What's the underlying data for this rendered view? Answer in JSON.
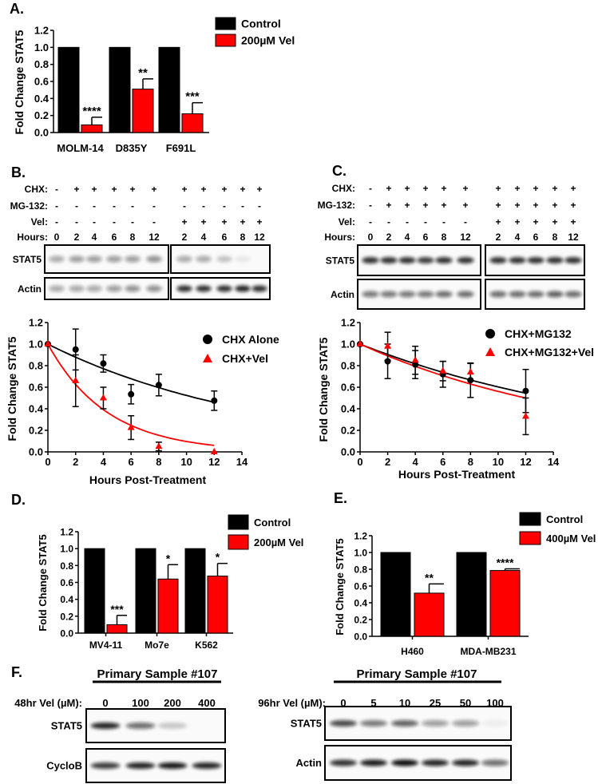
{
  "colors": {
    "control": "#000000",
    "vel": "#ff0000"
  },
  "chart_data": [
    {
      "id": "A",
      "panel_label": "A.",
      "type": "bar",
      "ylabel": "Fold Change STAT5",
      "xlabel": "",
      "ylim": [
        0,
        1.2
      ],
      "yticks": [
        "0.0",
        "0.2",
        "0.4",
        "0.6",
        "0.8",
        "1.0",
        "1.2"
      ],
      "categories": [
        "MOLM-14",
        "D835Y",
        "F691L"
      ],
      "series": [
        {
          "name": "Control",
          "values": [
            1.0,
            1.0,
            1.0
          ],
          "errors": [
            0,
            0,
            0
          ]
        },
        {
          "name": "200µM Vel",
          "values": [
            0.09,
            0.51,
            0.22
          ],
          "errors": [
            0.09,
            0.12,
            0.13
          ]
        }
      ],
      "annotations": [
        "****",
        "**",
        "***"
      ],
      "legend": "top-right",
      "grid": false
    },
    {
      "id": "B",
      "panel_label": "",
      "type": "line",
      "ylabel": "Fold Change STAT5",
      "xlabel": "Hours Post-Treatment",
      "ylim": [
        0,
        1.2
      ],
      "xlim": [
        0,
        14
      ],
      "yticks": [
        "0.0",
        "0.2",
        "0.4",
        "0.6",
        "0.8",
        "1.0",
        "1.2"
      ],
      "xticks": [
        "0",
        "2",
        "4",
        "6",
        "8",
        "10",
        "12",
        "14"
      ],
      "series": [
        {
          "name": "CHX Alone",
          "marker": "circle",
          "x": [
            0,
            2,
            4,
            6,
            8,
            12
          ],
          "y": [
            1.0,
            0.95,
            0.82,
            0.535,
            0.62,
            0.475
          ],
          "errors": [
            0,
            0.19,
            0.08,
            0.09,
            0.1,
            0.09
          ],
          "fit": {
            "model": "exp_decay",
            "k": 0.0647
          }
        },
        {
          "name": "CHX+Vel",
          "marker": "triangle",
          "x": [
            0,
            2,
            4,
            6,
            8,
            12
          ],
          "y": [
            1.0,
            0.66,
            0.5,
            0.225,
            0.05,
            0.0
          ],
          "errors": [
            0,
            0.24,
            0.1,
            0.11,
            0.04,
            0
          ],
          "fit": {
            "model": "exp_decay",
            "k": 0.234
          }
        }
      ],
      "legend": "top-right",
      "grid": false
    },
    {
      "id": "C",
      "panel_label": "",
      "type": "line",
      "ylabel": "Fold Change STAT5",
      "xlabel": "Hours Post-Treatment",
      "ylim": [
        0,
        1.2
      ],
      "xlim": [
        0,
        14
      ],
      "yticks": [
        "0.0",
        "0.2",
        "0.4",
        "0.6",
        "0.8",
        "1.0",
        "1.2"
      ],
      "xticks": [
        "0",
        "2",
        "4",
        "6",
        "8",
        "10",
        "12",
        "14"
      ],
      "series": [
        {
          "name": "CHX+MG132",
          "marker": "circle",
          "x": [
            0,
            2,
            4,
            6,
            8,
            12
          ],
          "y": [
            1.0,
            0.84,
            0.81,
            0.72,
            0.665,
            0.565
          ],
          "errors": [
            0,
            0.16,
            0.13,
            0.12,
            0.16,
            0.2
          ],
          "fit": {
            "model": "exp_decay",
            "k": 0.0506
          }
        },
        {
          "name": "CHX+MG132+Vel",
          "marker": "triangle",
          "x": [
            0,
            2,
            4,
            6,
            8,
            12
          ],
          "y": [
            1.0,
            0.98,
            0.85,
            0.75,
            0.74,
            0.33
          ],
          "errors": [
            0,
            0.13,
            0.13,
            0.09,
            0.08,
            0.17
          ],
          "fit": {
            "model": "exp_decay",
            "k": 0.0578
          }
        }
      ],
      "legend": "top-right",
      "grid": false
    },
    {
      "id": "D",
      "panel_label": "D.",
      "type": "bar",
      "ylabel": "Fold Change STAT5",
      "xlabel": "",
      "ylim": [
        0,
        1.2
      ],
      "yticks": [
        "0.0",
        "0.2",
        "0.4",
        "0.6",
        "0.8",
        "1.0",
        "1.2"
      ],
      "categories": [
        "MV4-11",
        "Mo7e",
        "K562"
      ],
      "series": [
        {
          "name": "Control",
          "values": [
            1.0,
            1.0,
            1.0
          ],
          "errors": [
            0,
            0,
            0
          ]
        },
        {
          "name": "200µM Vel",
          "values": [
            0.1,
            0.64,
            0.675
          ],
          "errors": [
            0.11,
            0.17,
            0.15
          ]
        }
      ],
      "annotations": [
        "***",
        "*",
        "*"
      ],
      "legend": "top-right",
      "grid": false
    },
    {
      "id": "E",
      "panel_label": "E.",
      "type": "bar",
      "ylabel": "Fold Change STAT5",
      "xlabel": "",
      "ylim": [
        0,
        1.2
      ],
      "yticks": [
        "0.0",
        "0.2",
        "0.4",
        "0.6",
        "0.8",
        "1.0",
        "1.2"
      ],
      "categories": [
        "H460",
        "MDA-MB231"
      ],
      "series": [
        {
          "name": "Control",
          "values": [
            1.0,
            1.0
          ],
          "errors": [
            0,
            0
          ]
        },
        {
          "name": "400µM Vel",
          "values": [
            0.515,
            0.785
          ],
          "errors": [
            0.11,
            0.02
          ]
        }
      ],
      "annotations": [
        "**",
        "****"
      ],
      "legend": "top-right",
      "grid": false
    }
  ],
  "blots": [
    {
      "id": "B",
      "panel_label": "B.",
      "header": "",
      "rows": [
        {
          "label": "CHX:",
          "values": [
            "-",
            "+",
            "+",
            "+",
            "+",
            "+",
            "+",
            "+",
            "+",
            "+",
            "+"
          ]
        },
        {
          "label": "MG-132:",
          "values": [
            "-",
            "-",
            "-",
            "-",
            "-",
            "-",
            "-",
            "-",
            "-",
            "-",
            "-"
          ]
        },
        {
          "label": "Vel:",
          "values": [
            "-",
            "-",
            "-",
            "-",
            "-",
            "-",
            "+",
            "+",
            "+",
            "+",
            "+"
          ]
        },
        {
          "label": "Hours:",
          "values": [
            "0",
            "2",
            "4",
            "6",
            "8",
            "12",
            "2",
            "4",
            "6",
            "8",
            "12"
          ]
        }
      ],
      "membranes": [
        {
          "label": "STAT5",
          "band_intensity": [
            0.35,
            0.4,
            0.4,
            0.4,
            0.4,
            0.45,
            0.35,
            0.35,
            0.22,
            0.07,
            0.0
          ]
        },
        {
          "label": "Actin",
          "band_intensity": [
            0.35,
            0.35,
            0.35,
            0.4,
            0.45,
            0.45,
            0.85,
            0.85,
            0.85,
            0.9,
            0.85
          ]
        }
      ]
    },
    {
      "id": "C",
      "panel_label": "C.",
      "header": "",
      "rows": [
        {
          "label": "CHX:",
          "values": [
            "-",
            "+",
            "+",
            "+",
            "+",
            "+",
            "+",
            "+",
            "+",
            "+",
            "+"
          ]
        },
        {
          "label": "MG-132:",
          "values": [
            "-",
            "+",
            "+",
            "+",
            "+",
            "+",
            "+",
            "+",
            "+",
            "+",
            "+"
          ]
        },
        {
          "label": "Vel:",
          "values": [
            "-",
            "-",
            "-",
            "-",
            "-",
            "-",
            "+",
            "+",
            "+",
            "+",
            "+"
          ]
        },
        {
          "label": "Hours:",
          "values": [
            "0",
            "2",
            "4",
            "6",
            "8",
            "12",
            "2",
            "4",
            "6",
            "8",
            "12"
          ]
        }
      ],
      "membranes": [
        {
          "label": "STAT5",
          "band_intensity": [
            0.85,
            0.85,
            0.85,
            0.8,
            0.85,
            0.85,
            0.85,
            0.85,
            0.85,
            0.85,
            0.85
          ]
        },
        {
          "label": "Actin",
          "band_intensity": [
            0.55,
            0.55,
            0.55,
            0.55,
            0.6,
            0.6,
            0.6,
            0.6,
            0.6,
            0.65,
            0.6
          ]
        }
      ]
    },
    {
      "id": "F1",
      "panel_label": "F.",
      "header": "Primary Sample #107",
      "rows": [
        {
          "label": "48hr Vel (µM):",
          "values": [
            "0",
            "100",
            "200",
            "400"
          ]
        }
      ],
      "membranes": [
        {
          "label": "STAT5",
          "band_intensity": [
            0.9,
            0.6,
            0.2,
            0.0
          ]
        },
        {
          "label": "CycloB",
          "band_intensity": [
            0.8,
            0.9,
            0.95,
            0.9
          ]
        }
      ]
    },
    {
      "id": "F2",
      "panel_label": "",
      "header": "Primary Sample #107",
      "rows": [
        {
          "label": "96hr Vel (µM):",
          "values": [
            "0",
            "5",
            "10",
            "25",
            "50",
            "100"
          ]
        }
      ],
      "membranes": [
        {
          "label": "STAT5",
          "band_intensity": [
            0.75,
            0.55,
            0.65,
            0.4,
            0.4,
            0.05
          ]
        },
        {
          "label": "Actin",
          "band_intensity": [
            0.85,
            0.95,
            1.0,
            0.9,
            0.9,
            0.6
          ]
        }
      ]
    }
  ]
}
